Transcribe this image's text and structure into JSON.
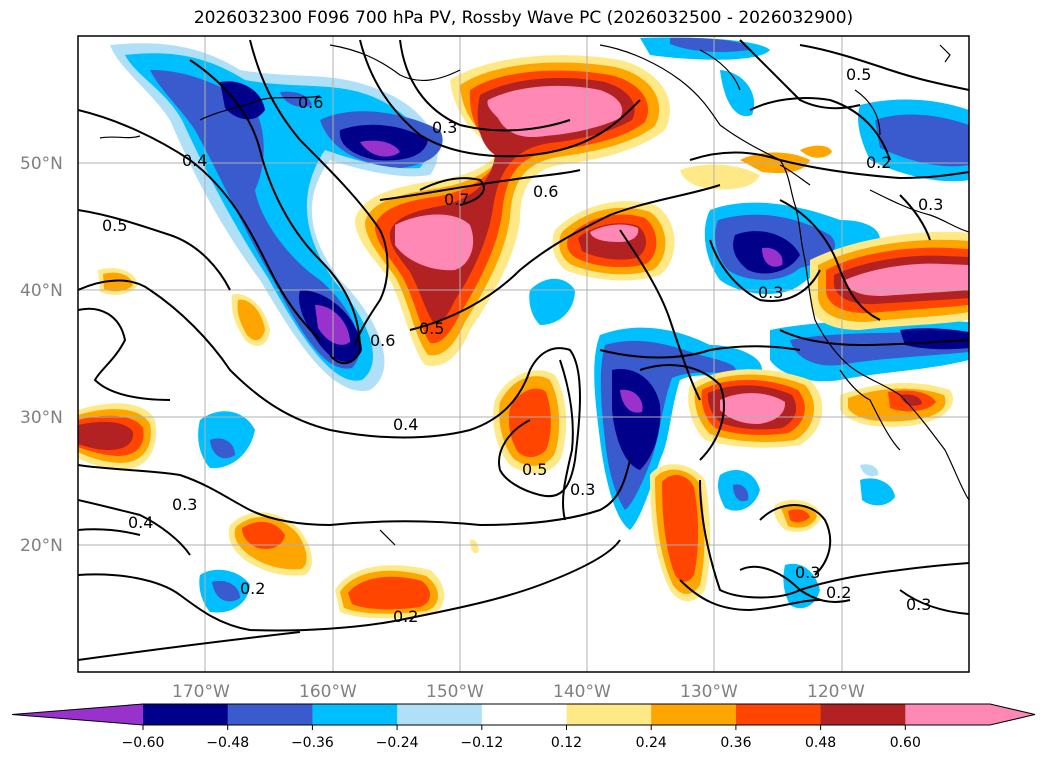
{
  "title": "2026032300 F096 700 hPa PV, Rossby Wave PC (2026032500 - 2026032900)",
  "map": {
    "lon_range": [
      -180,
      -110
    ],
    "lat_range": [
      10,
      60
    ],
    "lon_labels": [
      "170°W",
      "160°W",
      "150°W",
      "140°W",
      "130°W",
      "120°W"
    ],
    "lat_labels": [
      "50°N",
      "40°N",
      "30°N",
      "20°N"
    ],
    "grid": true,
    "contour_labels": [
      "0.6",
      "0.3",
      "0.5",
      "0.2",
      "0.4",
      "0.5",
      "0.7",
      "0.6",
      "0.6",
      "0.5",
      "0.3",
      "0.4",
      "0.5",
      "0.3",
      "0.3",
      "0.4",
      "0.2",
      "0.2",
      "0.3",
      "0.2",
      "0.3",
      "0.3"
    ]
  },
  "colorbar": {
    "ticks": [
      "−0.60",
      "−0.48",
      "−0.36",
      "−0.24",
      "−0.12",
      "0.12",
      "0.24",
      "0.36",
      "0.48",
      "0.60"
    ],
    "colors": [
      "#9932cc",
      "#00008b",
      "#3a5bcd",
      "#00bfff",
      "#b0e0f8",
      "#ffffff",
      "#ffe987",
      "#ffa500",
      "#ff4500",
      "#b22222",
      "#ff88b4",
      "#ffb0cc"
    ],
    "extend": "both"
  }
}
